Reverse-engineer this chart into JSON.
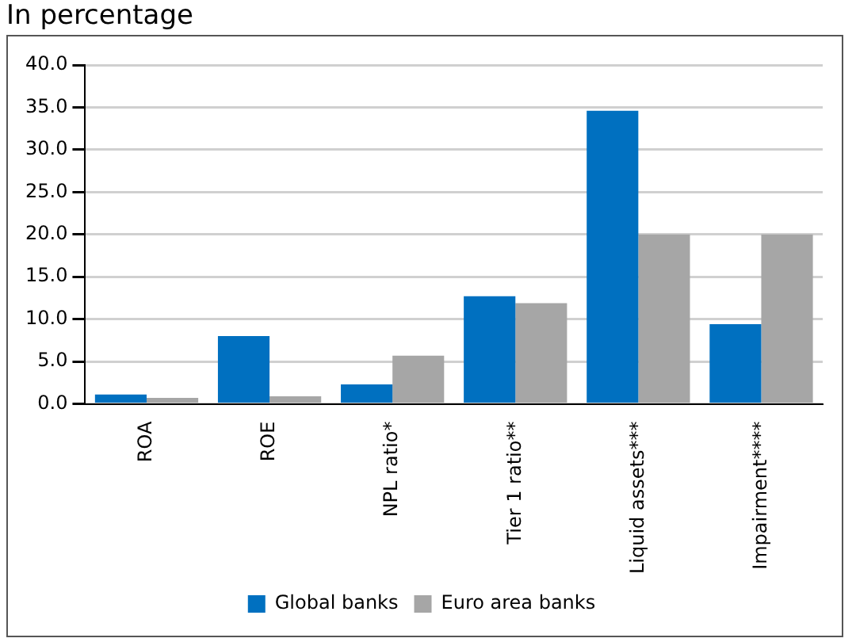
{
  "chart_data": {
    "type": "bar",
    "title": "In percentage",
    "categories": [
      "ROA",
      "ROE",
      "NPL ratio*",
      "Tier 1 ratio**",
      "Liquid assets***",
      "Impairment****"
    ],
    "series": [
      {
        "name": "Global banks",
        "color": "#0070c0",
        "values": [
          1.1,
          8.0,
          2.3,
          12.7,
          34.6,
          9.4
        ]
      },
      {
        "name": "Euro area banks",
        "color": "#a6a6a6",
        "values": [
          0.7,
          0.9,
          5.7,
          11.9,
          20.0,
          20.0
        ]
      }
    ],
    "ylim": [
      0,
      40
    ],
    "yticks": [
      {
        "value": 0,
        "label": "0.0"
      },
      {
        "value": 5,
        "label": "5.0"
      },
      {
        "value": 10,
        "label": "10.0"
      },
      {
        "value": 15,
        "label": "15.0"
      },
      {
        "value": 20,
        "label": "20.0"
      },
      {
        "value": 25,
        "label": "25.0"
      },
      {
        "value": 30,
        "label": "30.0"
      },
      {
        "value": 35,
        "label": "35.0"
      },
      {
        "value": 40,
        "label": "40.0"
      }
    ],
    "grid": "y",
    "legend": "bottom"
  }
}
